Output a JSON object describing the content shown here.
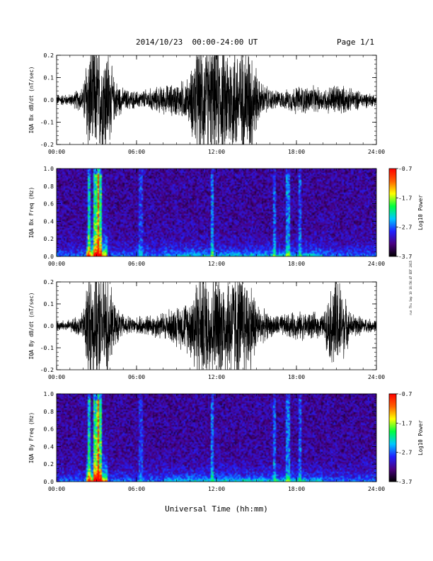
{
  "header": {
    "title": "2014/10/23  00:00-24:00 UT",
    "page": "Page 1/1"
  },
  "footer": {
    "xlabel": "Universal Time (hh:mm)",
    "stamp": "run Thu Sep 10 16:56:47 EDT 2015"
  },
  "colorbar": {
    "label": "Log10 Power",
    "ticks": [
      "-0.7",
      "-1.7",
      "-2.7",
      "-3.7"
    ],
    "colors": [
      "#000000",
      "#4a0080",
      "#2020ff",
      "#00c8ff",
      "#00ff40",
      "#ffff00",
      "#ff6000",
      "#ff0000"
    ]
  },
  "chart_data": [
    {
      "type": "line",
      "ylabel": "IQA Bx dB/dt (nT/sec)",
      "ylim": [
        -0.2,
        0.2
      ],
      "yticks": [
        "-0.2",
        "-0.1",
        "0.0",
        "0.1",
        "0.2"
      ],
      "xlim_hours": [
        0,
        24
      ],
      "xticks": [
        "00:00",
        "06:00",
        "12:00",
        "18:00",
        "24:00"
      ],
      "envelope": {
        "hours": [
          0,
          1,
          2,
          2.3,
          2.8,
          3.3,
          3.8,
          4.3,
          5,
          6,
          7,
          8,
          9,
          10,
          10.4,
          11,
          12,
          13,
          14,
          14.6,
          15.2,
          16,
          17,
          18,
          19,
          20,
          21,
          22,
          23,
          24
        ],
        "amplitude": [
          0.02,
          0.02,
          0.05,
          0.2,
          0.2,
          0.2,
          0.2,
          0.08,
          0.04,
          0.03,
          0.04,
          0.05,
          0.06,
          0.08,
          0.2,
          0.2,
          0.2,
          0.2,
          0.2,
          0.2,
          0.07,
          0.04,
          0.03,
          0.05,
          0.05,
          0.04,
          0.06,
          0.04,
          0.03,
          0.02
        ]
      }
    },
    {
      "type": "heatmap",
      "ylabel": "IQA Bx Freq (Hz)",
      "ylim": [
        0.0,
        1.0
      ],
      "yticks": [
        "0.0",
        "0.2",
        "0.4",
        "0.6",
        "0.8",
        "1.0"
      ],
      "xlim_hours": [
        0,
        24
      ],
      "xticks": [
        "00:00",
        "06:00",
        "12:00",
        "18:00",
        "24:00"
      ],
      "zlim": [
        -3.7,
        -0.7
      ]
    },
    {
      "type": "line",
      "ylabel": "IQA By dB/dt (nT/sec)",
      "ylim": [
        -0.2,
        0.2
      ],
      "yticks": [
        "-0.2",
        "-0.1",
        "0.0",
        "0.1",
        "0.2"
      ],
      "xlim_hours": [
        0,
        24
      ],
      "xticks": [
        "00:00",
        "06:00",
        "12:00",
        "18:00",
        "24:00"
      ],
      "envelope": {
        "hours": [
          0,
          1,
          2,
          2.3,
          2.8,
          3.3,
          3.8,
          4.3,
          5,
          6,
          7,
          8,
          9,
          10,
          10.4,
          11,
          12,
          13,
          14,
          14.6,
          15.2,
          16,
          17,
          18,
          19,
          20,
          21,
          22,
          23,
          24
        ],
        "amplitude": [
          0.02,
          0.02,
          0.05,
          0.2,
          0.2,
          0.2,
          0.2,
          0.08,
          0.04,
          0.03,
          0.04,
          0.05,
          0.07,
          0.1,
          0.2,
          0.2,
          0.2,
          0.2,
          0.2,
          0.16,
          0.07,
          0.04,
          0.04,
          0.05,
          0.05,
          0.04,
          0.2,
          0.05,
          0.03,
          0.02
        ]
      }
    },
    {
      "type": "heatmap",
      "ylabel": "IQA By Freq (Hz)",
      "ylim": [
        0.0,
        1.0
      ],
      "yticks": [
        "0.0",
        "0.2",
        "0.4",
        "0.6",
        "0.8",
        "1.0"
      ],
      "xlim_hours": [
        0,
        24
      ],
      "xticks": [
        "00:00",
        "06:00",
        "12:00",
        "18:00",
        "24:00"
      ],
      "zlim": [
        -3.7,
        -0.7
      ]
    }
  ]
}
